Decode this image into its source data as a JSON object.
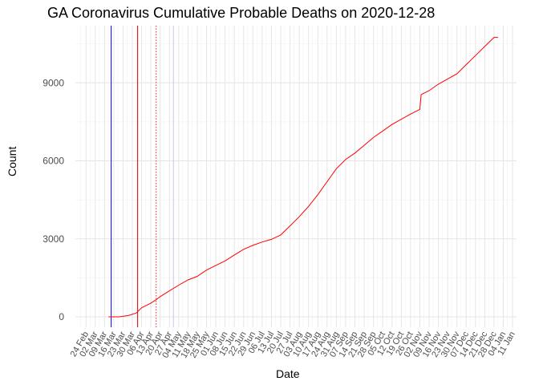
{
  "chart_data": {
    "type": "line",
    "title": "GA Coronavirus Cumulative Probable Deaths on 2020-12-28",
    "xlabel": "Date",
    "ylabel": "Count",
    "ylim": [
      -400,
      11200
    ],
    "xlim": [
      "2020-02-16",
      "2021-01-14"
    ],
    "grid": true,
    "y_ticks": [
      0,
      3000,
      6000,
      9000
    ],
    "x_ticks": [
      "24 Feb",
      "02 Mar",
      "09 Mar",
      "16 Mar",
      "23 Mar",
      "30 Mar",
      "06 Apr",
      "13 Apr",
      "20 Apr",
      "27 Apr",
      "04 May",
      "11 May",
      "18 May",
      "25 May",
      "01 Jun",
      "08 Jun",
      "15 Jun",
      "22 Jun",
      "29 Jun",
      "06 Jul",
      "13 Jul",
      "20 Jul",
      "27 Jul",
      "03 Aug",
      "10 Aug",
      "17 Aug",
      "24 Aug",
      "31 Aug",
      "07 Sep",
      "14 Sep",
      "21 Sep",
      "28 Sep",
      "05 Oct",
      "12 Oct",
      "19 Oct",
      "26 Oct",
      "02 Nov",
      "09 Nov",
      "16 Nov",
      "23 Nov",
      "30 Nov",
      "07 Dec",
      "14 Dec",
      "21 Dec",
      "28 Dec",
      "04 Jan",
      "11 Jan"
    ],
    "x_tick_dates": [
      "2020-02-24",
      "2020-03-02",
      "2020-03-09",
      "2020-03-16",
      "2020-03-23",
      "2020-03-30",
      "2020-04-06",
      "2020-04-13",
      "2020-04-20",
      "2020-04-27",
      "2020-05-04",
      "2020-05-11",
      "2020-05-18",
      "2020-05-25",
      "2020-06-01",
      "2020-06-08",
      "2020-06-15",
      "2020-06-22",
      "2020-06-29",
      "2020-07-06",
      "2020-07-13",
      "2020-07-20",
      "2020-07-27",
      "2020-08-03",
      "2020-08-10",
      "2020-08-17",
      "2020-08-24",
      "2020-08-31",
      "2020-09-07",
      "2020-09-14",
      "2020-09-21",
      "2020-09-28",
      "2020-10-05",
      "2020-10-12",
      "2020-10-19",
      "2020-10-26",
      "2020-11-02",
      "2020-11-09",
      "2020-11-16",
      "2020-11-23",
      "2020-11-30",
      "2020-12-07",
      "2020-12-14",
      "2020-12-21",
      "2020-12-28",
      "2021-01-04",
      "2021-01-11"
    ],
    "vlines": [
      {
        "date": "2020-03-14",
        "color": "#0000ff",
        "style": "solid"
      },
      {
        "date": "2020-04-03",
        "color": "#cc0000",
        "style": "solid"
      },
      {
        "date": "2020-04-17",
        "color": "#e8242e",
        "style": "dotted"
      },
      {
        "date": "2020-04-30",
        "color": "#c9c3ee",
        "style": "solid"
      }
    ],
    "series": [
      {
        "color": "#ff0000",
        "points": [
          [
            "2020-03-12",
            0
          ],
          [
            "2020-03-20",
            0
          ],
          [
            "2020-03-27",
            50
          ],
          [
            "2020-04-02",
            150
          ],
          [
            "2020-04-06",
            350
          ],
          [
            "2020-04-13",
            530
          ],
          [
            "2020-04-17",
            660
          ],
          [
            "2020-04-20",
            780
          ],
          [
            "2020-04-27",
            1000
          ],
          [
            "2020-05-04",
            1220
          ],
          [
            "2020-05-11",
            1420
          ],
          [
            "2020-05-18",
            1560
          ],
          [
            "2020-05-25",
            1800
          ],
          [
            "2020-06-01",
            1980
          ],
          [
            "2020-06-08",
            2150
          ],
          [
            "2020-06-15",
            2380
          ],
          [
            "2020-06-22",
            2600
          ],
          [
            "2020-06-29",
            2750
          ],
          [
            "2020-07-06",
            2880
          ],
          [
            "2020-07-13",
            2980
          ],
          [
            "2020-07-20",
            3150
          ],
          [
            "2020-07-27",
            3500
          ],
          [
            "2020-08-03",
            3850
          ],
          [
            "2020-08-10",
            4250
          ],
          [
            "2020-08-17",
            4700
          ],
          [
            "2020-08-24",
            5200
          ],
          [
            "2020-08-31",
            5700
          ],
          [
            "2020-09-07",
            6050
          ],
          [
            "2020-09-14",
            6300
          ],
          [
            "2020-09-21",
            6600
          ],
          [
            "2020-09-28",
            6900
          ],
          [
            "2020-10-05",
            7150
          ],
          [
            "2020-10-12",
            7400
          ],
          [
            "2020-10-19",
            7600
          ],
          [
            "2020-10-26",
            7800
          ],
          [
            "2020-11-02",
            7980
          ],
          [
            "2020-11-03",
            8550
          ],
          [
            "2020-11-09",
            8700
          ],
          [
            "2020-11-16",
            8950
          ],
          [
            "2020-11-23",
            9150
          ],
          [
            "2020-11-30",
            9350
          ],
          [
            "2020-12-07",
            9700
          ],
          [
            "2020-12-14",
            10050
          ],
          [
            "2020-12-21",
            10400
          ],
          [
            "2020-12-28",
            10750
          ],
          [
            "2020-12-31",
            10750
          ]
        ]
      }
    ]
  }
}
